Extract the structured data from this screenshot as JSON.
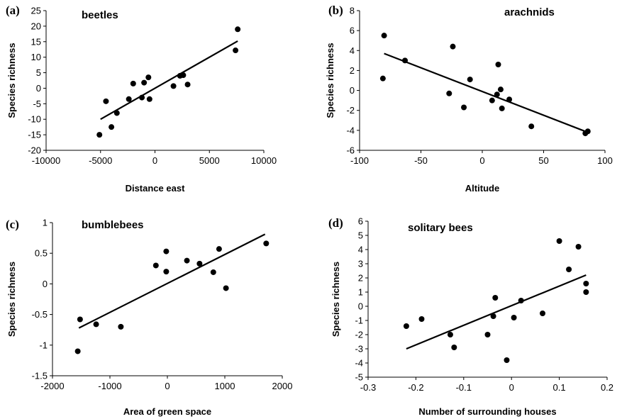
{
  "chart_data": [
    {
      "type": "scatter",
      "panel_label": "(a)",
      "title": "beetles",
      "xlabel": "Distance east",
      "ylabel": "Species richness",
      "xlim": [
        -10000,
        10000
      ],
      "ylim": [
        -20,
        25
      ],
      "xticks": [
        -10000,
        -5000,
        0,
        5000,
        10000
      ],
      "xtick_labels": [
        "-10000",
        "-5000",
        "0",
        "5000",
        "10000"
      ],
      "yticks": [
        -20,
        -15,
        -10,
        -5,
        0,
        5,
        10,
        15,
        20,
        25
      ],
      "ytick_labels": [
        "-20",
        "-15",
        "-10",
        "-5",
        "0",
        "5",
        "10",
        "15",
        "20",
        "25"
      ],
      "points": [
        {
          "x": -5100,
          "y": -15
        },
        {
          "x": -4500,
          "y": -4.2
        },
        {
          "x": -4000,
          "y": -12.5
        },
        {
          "x": -3500,
          "y": -8
        },
        {
          "x": -2400,
          "y": -3.5
        },
        {
          "x": -2000,
          "y": 1.5
        },
        {
          "x": -1200,
          "y": -3
        },
        {
          "x": -1000,
          "y": 1.8
        },
        {
          "x": -600,
          "y": 3.5
        },
        {
          "x": -500,
          "y": -3.5
        },
        {
          "x": 1700,
          "y": 0.7
        },
        {
          "x": 2300,
          "y": 4
        },
        {
          "x": 2600,
          "y": 4.2
        },
        {
          "x": 3000,
          "y": 1.2
        },
        {
          "x": 7400,
          "y": 12.2
        },
        {
          "x": 7600,
          "y": 19
        }
      ],
      "trendline": [
        {
          "x": -5000,
          "y": -10
        },
        {
          "x": 7600,
          "y": 15.2
        }
      ],
      "grid": false
    },
    {
      "type": "scatter",
      "panel_label": "(b)",
      "title": "arachnids",
      "xlabel": "Altitude",
      "ylabel": "Species richness",
      "xlim": [
        -100,
        100
      ],
      "ylim": [
        -6,
        8
      ],
      "xticks": [
        -100,
        -50,
        0,
        50,
        100
      ],
      "xtick_labels": [
        "-100",
        "-50",
        "0",
        "50",
        "100"
      ],
      "yticks": [
        -6,
        -4,
        -2,
        0,
        2,
        4,
        6,
        8
      ],
      "ytick_labels": [
        "-6",
        "-4",
        "-2",
        "0",
        "2",
        "4",
        "6",
        "8"
      ],
      "points": [
        {
          "x": -80,
          "y": 5.5
        },
        {
          "x": -81,
          "y": 1.2
        },
        {
          "x": -63,
          "y": 3
        },
        {
          "x": -24,
          "y": 4.4
        },
        {
          "x": -27,
          "y": -0.3
        },
        {
          "x": -15,
          "y": -1.7
        },
        {
          "x": -10,
          "y": 1.1
        },
        {
          "x": 8,
          "y": -1
        },
        {
          "x": 13,
          "y": 2.6
        },
        {
          "x": 12,
          "y": -0.4
        },
        {
          "x": 15,
          "y": 0.1
        },
        {
          "x": 16,
          "y": -1.8
        },
        {
          "x": 22,
          "y": -0.9
        },
        {
          "x": 40,
          "y": -3.6
        },
        {
          "x": 84,
          "y": -4.3
        },
        {
          "x": 86,
          "y": -4.1
        }
      ],
      "trendline": [
        {
          "x": -80,
          "y": 3.7
        },
        {
          "x": 86,
          "y": -4.2
        }
      ],
      "grid": false
    },
    {
      "type": "scatter",
      "panel_label": "(c)",
      "title": "bumblebees",
      "xlabel": "Area of green space",
      "ylabel": "Species richness",
      "xlim": [
        -2000,
        2000
      ],
      "ylim": [
        -1.5,
        1
      ],
      "xticks": [
        -2000,
        -1000,
        0,
        1000,
        2000
      ],
      "xtick_labels": [
        "-2000",
        "-1000",
        "0",
        "1000",
        "2000"
      ],
      "yticks": [
        -1.5,
        -1,
        -0.5,
        0,
        0.5,
        1
      ],
      "ytick_labels": [
        "-1.5",
        "-1",
        "-0.5",
        "0",
        "0.5",
        "1"
      ],
      "points": [
        {
          "x": -1560,
          "y": -1.1
        },
        {
          "x": -1520,
          "y": -0.58
        },
        {
          "x": -1240,
          "y": -0.66
        },
        {
          "x": -810,
          "y": -0.7
        },
        {
          "x": -200,
          "y": 0.3
        },
        {
          "x": -20,
          "y": 0.53
        },
        {
          "x": -20,
          "y": 0.2
        },
        {
          "x": 340,
          "y": 0.38
        },
        {
          "x": 560,
          "y": 0.33
        },
        {
          "x": 800,
          "y": 0.19
        },
        {
          "x": 900,
          "y": 0.57
        },
        {
          "x": 1020,
          "y": -0.07
        },
        {
          "x": 1720,
          "y": 0.66
        }
      ],
      "trendline": [
        {
          "x": -1540,
          "y": -0.72
        },
        {
          "x": 1700,
          "y": 0.81
        }
      ],
      "grid": false
    },
    {
      "type": "scatter",
      "panel_label": "(d)",
      "title": "solitary bees",
      "xlabel": "Number of surrounding houses",
      "ylabel": "Species richness",
      "xlim": [
        -0.3,
        0.2
      ],
      "ylim": [
        -5,
        6
      ],
      "xticks": [
        -0.3,
        -0.2,
        -0.1,
        0,
        0.1,
        0.2
      ],
      "xtick_labels": [
        "-0.3",
        "-0.2",
        "-0.1",
        "0",
        "0.1",
        "0.2"
      ],
      "yticks": [
        -5,
        -4,
        -3,
        -2,
        -1,
        0,
        1,
        2,
        3,
        4,
        5,
        6
      ],
      "ytick_labels": [
        "-5",
        "-4",
        "-3",
        "-2",
        "-1",
        "0",
        "1",
        "2",
        "3",
        "4",
        "5",
        "6"
      ],
      "points": [
        {
          "x": -0.22,
          "y": -1.4
        },
        {
          "x": -0.188,
          "y": -0.9
        },
        {
          "x": -0.128,
          "y": -2
        },
        {
          "x": -0.12,
          "y": -2.9
        },
        {
          "x": -0.05,
          "y": -2
        },
        {
          "x": -0.038,
          "y": -0.7
        },
        {
          "x": -0.034,
          "y": 0.6
        },
        {
          "x": -0.01,
          "y": -3.8
        },
        {
          "x": 0.005,
          "y": -0.8
        },
        {
          "x": 0.02,
          "y": 0.4
        },
        {
          "x": 0.065,
          "y": -0.5
        },
        {
          "x": 0.1,
          "y": 4.6
        },
        {
          "x": 0.12,
          "y": 2.6
        },
        {
          "x": 0.14,
          "y": 4.2
        },
        {
          "x": 0.156,
          "y": 1.6
        },
        {
          "x": 0.156,
          "y": 1
        }
      ],
      "trendline": [
        {
          "x": -0.22,
          "y": -3
        },
        {
          "x": 0.156,
          "y": 2.2
        }
      ],
      "grid": false
    }
  ]
}
